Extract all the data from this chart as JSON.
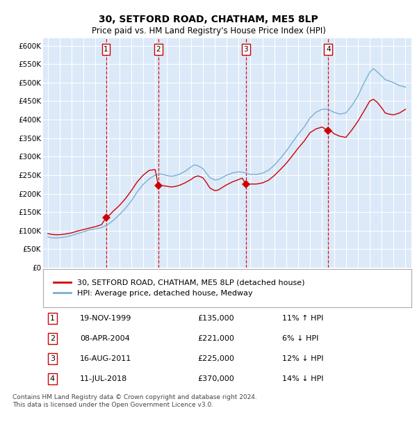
{
  "title": "30, SETFORD ROAD, CHATHAM, ME5 8LP",
  "subtitle": "Price paid vs. HM Land Registry's House Price Index (HPI)",
  "footer_line1": "Contains HM Land Registry data © Crown copyright and database right 2024.",
  "footer_line2": "This data is licensed under the Open Government Licence v3.0.",
  "legend_label_red": "30, SETFORD ROAD, CHATHAM, ME5 8LP (detached house)",
  "legend_label_blue": "HPI: Average price, detached house, Medway",
  "ylim": [
    0,
    620000
  ],
  "yticks": [
    0,
    50000,
    100000,
    150000,
    200000,
    250000,
    300000,
    350000,
    400000,
    450000,
    500000,
    550000,
    600000
  ],
  "ytick_labels": [
    "£0",
    "£50K",
    "£100K",
    "£150K",
    "£200K",
    "£250K",
    "£300K",
    "£350K",
    "£400K",
    "£450K",
    "£500K",
    "£550K",
    "£600K"
  ],
  "xlim_start": 1994.6,
  "xlim_end": 2025.5,
  "xticks": [
    1995,
    1996,
    1997,
    1998,
    1999,
    2000,
    2001,
    2002,
    2003,
    2004,
    2005,
    2006,
    2007,
    2008,
    2009,
    2010,
    2011,
    2012,
    2013,
    2014,
    2015,
    2016,
    2017,
    2018,
    2019,
    2020,
    2021,
    2022,
    2023,
    2024,
    2025
  ],
  "plot_bg_color": "#dce9f8",
  "grid_color": "#ffffff",
  "red_color": "#cc0000",
  "blue_color": "#7aafd4",
  "sale_points": [
    {
      "year": 1999.88,
      "price": 135000,
      "label": "1"
    },
    {
      "year": 2004.27,
      "price": 221000,
      "label": "2"
    },
    {
      "year": 2011.62,
      "price": 225000,
      "label": "3"
    },
    {
      "year": 2018.52,
      "price": 370000,
      "label": "4"
    }
  ],
  "vline_years": [
    1999.88,
    2004.27,
    2011.62,
    2018.52
  ],
  "table_rows": [
    {
      "num": "1",
      "date": "19-NOV-1999",
      "price": "£135,000",
      "change": "11% ↑ HPI"
    },
    {
      "num": "2",
      "date": "08-APR-2004",
      "price": "£221,000",
      "change": "6% ↓ HPI"
    },
    {
      "num": "3",
      "date": "16-AUG-2011",
      "price": "£225,000",
      "change": "12% ↓ HPI"
    },
    {
      "num": "4",
      "date": "11-JUL-2018",
      "price": "£370,000",
      "change": "14% ↓ HPI"
    }
  ],
  "blue_pts": [
    [
      1995.0,
      83000
    ],
    [
      1995.3,
      81000
    ],
    [
      1995.6,
      80000
    ],
    [
      1996.0,
      81000
    ],
    [
      1996.5,
      83000
    ],
    [
      1997.0,
      87000
    ],
    [
      1997.5,
      92000
    ],
    [
      1998.0,
      97000
    ],
    [
      1998.5,
      102000
    ],
    [
      1999.0,
      105000
    ],
    [
      1999.5,
      108000
    ],
    [
      2000.0,
      116000
    ],
    [
      2000.5,
      128000
    ],
    [
      2001.0,
      143000
    ],
    [
      2001.5,
      160000
    ],
    [
      2002.0,
      180000
    ],
    [
      2002.5,
      205000
    ],
    [
      2003.0,
      225000
    ],
    [
      2003.5,
      240000
    ],
    [
      2004.0,
      250000
    ],
    [
      2004.5,
      253000
    ],
    [
      2005.0,
      249000
    ],
    [
      2005.3,
      247000
    ],
    [
      2005.6,
      248000
    ],
    [
      2006.0,
      252000
    ],
    [
      2006.5,
      260000
    ],
    [
      2007.0,
      272000
    ],
    [
      2007.3,
      278000
    ],
    [
      2007.6,
      275000
    ],
    [
      2008.0,
      268000
    ],
    [
      2008.3,
      255000
    ],
    [
      2008.6,
      243000
    ],
    [
      2009.0,
      237000
    ],
    [
      2009.3,
      238000
    ],
    [
      2009.6,
      243000
    ],
    [
      2010.0,
      250000
    ],
    [
      2010.5,
      256000
    ],
    [
      2011.0,
      259000
    ],
    [
      2011.3,
      258000
    ],
    [
      2011.6,
      256000
    ],
    [
      2012.0,
      252000
    ],
    [
      2012.5,
      252000
    ],
    [
      2013.0,
      255000
    ],
    [
      2013.5,
      263000
    ],
    [
      2014.0,
      277000
    ],
    [
      2014.5,
      295000
    ],
    [
      2015.0,
      315000
    ],
    [
      2015.5,
      338000
    ],
    [
      2016.0,
      360000
    ],
    [
      2016.5,
      380000
    ],
    [
      2017.0,
      405000
    ],
    [
      2017.5,
      420000
    ],
    [
      2018.0,
      428000
    ],
    [
      2018.5,
      428000
    ],
    [
      2019.0,
      420000
    ],
    [
      2019.5,
      415000
    ],
    [
      2020.0,
      418000
    ],
    [
      2020.5,
      438000
    ],
    [
      2021.0,
      463000
    ],
    [
      2021.5,
      498000
    ],
    [
      2022.0,
      528000
    ],
    [
      2022.3,
      538000
    ],
    [
      2022.6,
      530000
    ],
    [
      2023.0,
      518000
    ],
    [
      2023.3,
      508000
    ],
    [
      2023.6,
      505000
    ],
    [
      2024.0,
      500000
    ],
    [
      2024.5,
      492000
    ],
    [
      2025.0,
      488000
    ]
  ],
  "red_pts": [
    [
      1995.0,
      92000
    ],
    [
      1995.3,
      90000
    ],
    [
      1995.6,
      89000
    ],
    [
      1996.0,
      89000
    ],
    [
      1996.5,
      91000
    ],
    [
      1997.0,
      94000
    ],
    [
      1997.5,
      99000
    ],
    [
      1998.0,
      103000
    ],
    [
      1998.5,
      107000
    ],
    [
      1999.0,
      111000
    ],
    [
      1999.5,
      116000
    ],
    [
      1999.88,
      135000
    ],
    [
      2000.2,
      143000
    ],
    [
      2000.5,
      153000
    ],
    [
      2001.0,
      168000
    ],
    [
      2001.5,
      186000
    ],
    [
      2002.0,
      208000
    ],
    [
      2002.5,
      232000
    ],
    [
      2003.0,
      250000
    ],
    [
      2003.5,
      263000
    ],
    [
      2004.0,
      265000
    ],
    [
      2004.27,
      221000
    ],
    [
      2004.5,
      222000
    ],
    [
      2005.0,
      220000
    ],
    [
      2005.3,
      218000
    ],
    [
      2005.6,
      219000
    ],
    [
      2006.0,
      222000
    ],
    [
      2006.5,
      229000
    ],
    [
      2007.0,
      238000
    ],
    [
      2007.3,
      245000
    ],
    [
      2007.6,
      248000
    ],
    [
      2008.0,
      243000
    ],
    [
      2008.3,
      230000
    ],
    [
      2008.6,
      215000
    ],
    [
      2009.0,
      208000
    ],
    [
      2009.3,
      210000
    ],
    [
      2009.6,
      216000
    ],
    [
      2010.0,
      224000
    ],
    [
      2010.5,
      232000
    ],
    [
      2011.0,
      238000
    ],
    [
      2011.3,
      242000
    ],
    [
      2011.62,
      225000
    ],
    [
      2012.0,
      226000
    ],
    [
      2012.5,
      226000
    ],
    [
      2013.0,
      229000
    ],
    [
      2013.5,
      236000
    ],
    [
      2014.0,
      249000
    ],
    [
      2014.5,
      265000
    ],
    [
      2015.0,
      282000
    ],
    [
      2015.5,
      302000
    ],
    [
      2016.0,
      323000
    ],
    [
      2016.5,
      342000
    ],
    [
      2017.0,
      365000
    ],
    [
      2017.5,
      375000
    ],
    [
      2018.0,
      380000
    ],
    [
      2018.52,
      370000
    ],
    [
      2018.8,
      368000
    ],
    [
      2019.0,
      362000
    ],
    [
      2019.5,
      355000
    ],
    [
      2020.0,
      352000
    ],
    [
      2020.5,
      372000
    ],
    [
      2021.0,
      395000
    ],
    [
      2021.5,
      422000
    ],
    [
      2022.0,
      450000
    ],
    [
      2022.3,
      455000
    ],
    [
      2022.6,
      448000
    ],
    [
      2023.0,
      432000
    ],
    [
      2023.3,
      418000
    ],
    [
      2023.6,
      415000
    ],
    [
      2024.0,
      413000
    ],
    [
      2024.5,
      418000
    ],
    [
      2025.0,
      428000
    ]
  ]
}
